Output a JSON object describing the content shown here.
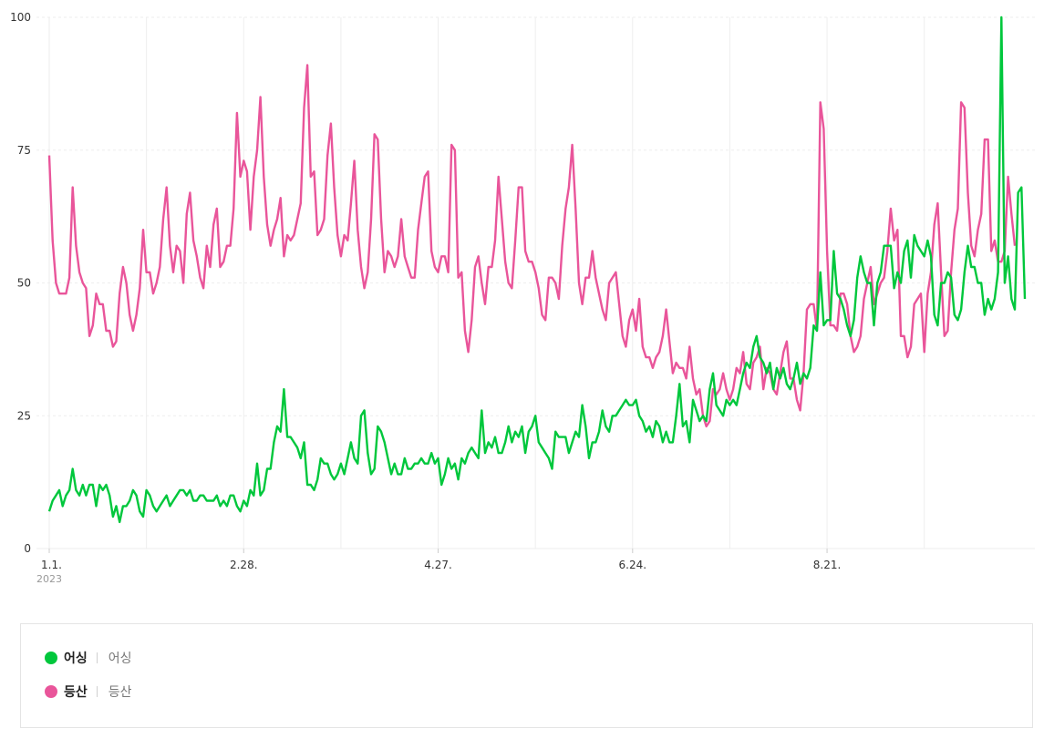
{
  "chart_data": {
    "type": "line",
    "ylim": [
      0,
      100
    ],
    "yticks": [
      0,
      25,
      50,
      75,
      100
    ],
    "x_tick_labels": [
      "1.1.",
      "2.28.",
      "4.27.",
      "6.24.",
      "8.21."
    ],
    "x_tick_day_index": [
      0,
      58,
      116,
      174,
      232
    ],
    "year_label": "2023",
    "grid": true,
    "series": [
      {
        "name": "어싱",
        "color": "#00c73c",
        "values": [
          7,
          9,
          10,
          11,
          8,
          10,
          11,
          15,
          11,
          10,
          12,
          10,
          12,
          12,
          8,
          12,
          11,
          12,
          10,
          6,
          8,
          5,
          8,
          8,
          9,
          11,
          10,
          7,
          6,
          11,
          10,
          8,
          7,
          8,
          9,
          10,
          8,
          9,
          10,
          11,
          11,
          10,
          11,
          9,
          9,
          10,
          10,
          9,
          9,
          9,
          10,
          8,
          9,
          8,
          10,
          10,
          8,
          7,
          9,
          8,
          11,
          10,
          16,
          10,
          11,
          15,
          15,
          20,
          23,
          22,
          30,
          21,
          21,
          20,
          19,
          17,
          20,
          12,
          12,
          11,
          13,
          17,
          16,
          16,
          14,
          13,
          14,
          16,
          14,
          17,
          20,
          17,
          16,
          25,
          26,
          18,
          14,
          15,
          23,
          22,
          20,
          17,
          14,
          16,
          14,
          14,
          17,
          15,
          15,
          16,
          16,
          17,
          16,
          16,
          18,
          16,
          17,
          12,
          14,
          17,
          15,
          16,
          13,
          17,
          16,
          18,
          19,
          18,
          17,
          26,
          18,
          20,
          19,
          21,
          18,
          18,
          20,
          23,
          20,
          22,
          21,
          23,
          18,
          22,
          23,
          25,
          20,
          19,
          18,
          17,
          15,
          22,
          21,
          21,
          21,
          18,
          20,
          22,
          21,
          27,
          23,
          17,
          20,
          20,
          22,
          26,
          23,
          22,
          25,
          25,
          26,
          27,
          28,
          27,
          27,
          28,
          25,
          24,
          22,
          23,
          21,
          24,
          23,
          20,
          22,
          20,
          20,
          25,
          31,
          23,
          24,
          20,
          28,
          26,
          24,
          25,
          24,
          30,
          33,
          27,
          26,
          25,
          28,
          27,
          28,
          27,
          30,
          33,
          35,
          34,
          38,
          40,
          36,
          35,
          33,
          35,
          30,
          34,
          32,
          34,
          31,
          30,
          32,
          35,
          31,
          33,
          32,
          34,
          42,
          41,
          52,
          42,
          43,
          43,
          56,
          48,
          47,
          45,
          42,
          40,
          43,
          51,
          55,
          52,
          50,
          50,
          42,
          50,
          52,
          57,
          57,
          57,
          49,
          52,
          50,
          56,
          58,
          51,
          59,
          57,
          56,
          55,
          58,
          55,
          44,
          42,
          50,
          50,
          52,
          51,
          44,
          43,
          45,
          52,
          57,
          53,
          53,
          50,
          50,
          44,
          47,
          45,
          47,
          52,
          100,
          50,
          55,
          47,
          45,
          67,
          68,
          47
        ]
      },
      {
        "name": "등산",
        "color": "#e9559a",
        "values": [
          74,
          58,
          50,
          48,
          48,
          48,
          51,
          68,
          57,
          52,
          50,
          49,
          40,
          42,
          48,
          46,
          46,
          41,
          41,
          38,
          39,
          48,
          53,
          50,
          44,
          41,
          44,
          49,
          60,
          52,
          52,
          48,
          50,
          53,
          62,
          68,
          57,
          52,
          57,
          56,
          50,
          63,
          67,
          58,
          55,
          51,
          49,
          57,
          53,
          61,
          64,
          53,
          54,
          57,
          57,
          64,
          82,
          70,
          73,
          71,
          60,
          70,
          75,
          85,
          70,
          61,
          57,
          60,
          62,
          66,
          55,
          59,
          58,
          59,
          62,
          65,
          83,
          91,
          70,
          71,
          59,
          60,
          62,
          74,
          80,
          68,
          59,
          55,
          59,
          58,
          65,
          73,
          60,
          53,
          49,
          52,
          62,
          78,
          77,
          62,
          52,
          56,
          55,
          53,
          55,
          62,
          55,
          53,
          51,
          51,
          60,
          65,
          70,
          71,
          56,
          53,
          52,
          55,
          55,
          52,
          76,
          75,
          51,
          52,
          41,
          37,
          43,
          53,
          55,
          50,
          46,
          53,
          53,
          58,
          70,
          62,
          54,
          50,
          49,
          58,
          68,
          68,
          56,
          54,
          54,
          52,
          49,
          44,
          43,
          51,
          51,
          50,
          47,
          57,
          64,
          68,
          76,
          64,
          50,
          46,
          51,
          51,
          56,
          51,
          48,
          45,
          43,
          50,
          51,
          52,
          46,
          40,
          38,
          43,
          45,
          41,
          47,
          38,
          36,
          36,
          34,
          36,
          37,
          40,
          45,
          39,
          33,
          35,
          34,
          34,
          32,
          38,
          32,
          29,
          30,
          25,
          23,
          24,
          30,
          29,
          30,
          33,
          30,
          28,
          30,
          34,
          33,
          37,
          31,
          30,
          35,
          36,
          38,
          30,
          34,
          33,
          30,
          29,
          33,
          37,
          39,
          32,
          32,
          28,
          26,
          33,
          45,
          46,
          46,
          41,
          84,
          79,
          56,
          42,
          42,
          41,
          48,
          48,
          46,
          40,
          37,
          38,
          40,
          47,
          50,
          53,
          46,
          48,
          50,
          51,
          56,
          64,
          58,
          60,
          40,
          40,
          36,
          38,
          46,
          47,
          48,
          37,
          48,
          52,
          61,
          65,
          52,
          40,
          41,
          52,
          60,
          64,
          84,
          83,
          67,
          57,
          55,
          60,
          63,
          77,
          77,
          56,
          58,
          54,
          54,
          56,
          70,
          63,
          57
        ]
      }
    ],
    "legend": [
      {
        "name": "어싱",
        "sub": "어싱"
      },
      {
        "name": "등산",
        "sub": "등산"
      }
    ]
  }
}
